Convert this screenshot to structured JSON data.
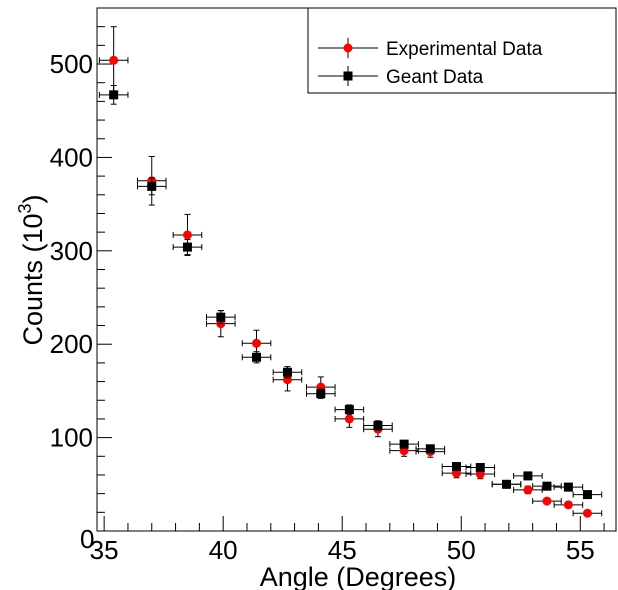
{
  "chart_data": {
    "type": "scatter",
    "xlabel": "Angle (Degrees)",
    "ylabel_main": "Counts (10",
    "ylabel_sup": "3",
    "ylabel_close": ")",
    "xlim": [
      34.7,
      56.5
    ],
    "ylim": [
      0,
      560
    ],
    "xticks": [
      35,
      40,
      45,
      50,
      55
    ],
    "yticks": [
      100,
      200,
      300,
      400,
      500
    ],
    "ytick_zero": "0",
    "legend_position": "top-right",
    "series": [
      {
        "name": "Experimental Data",
        "color": "#ff0000",
        "marker": "circle",
        "x": [
          35.4,
          37.0,
          38.5,
          39.9,
          41.4,
          42.7,
          44.1,
          45.3,
          46.5,
          47.6,
          48.7,
          49.8,
          50.8,
          51.9,
          52.8,
          53.6,
          54.5,
          55.3
        ],
        "y": [
          504,
          375,
          317,
          222,
          201,
          162,
          154,
          120,
          109,
          86,
          85,
          62,
          61,
          50,
          44,
          32,
          28,
          19
        ],
        "yerr": [
          36,
          26,
          22,
          14,
          14,
          12,
          11,
          9,
          8,
          6,
          6,
          5,
          5,
          4,
          4,
          3,
          3,
          2
        ]
      },
      {
        "name": "Geant Data",
        "color": "#000000",
        "marker": "square",
        "x": [
          35.4,
          37.0,
          38.5,
          39.9,
          41.4,
          42.7,
          44.1,
          45.3,
          46.5,
          47.6,
          48.7,
          49.8,
          50.8,
          51.9,
          52.8,
          53.6,
          54.5,
          55.3
        ],
        "y": [
          467,
          369,
          304,
          229,
          186,
          170,
          147,
          130,
          113,
          93,
          88,
          69,
          68,
          50,
          59,
          48,
          47,
          39
        ],
        "yerr": [
          10,
          9,
          8,
          7,
          6,
          6,
          5,
          5,
          5,
          4,
          4,
          4,
          4,
          3,
          3,
          3,
          3,
          3
        ]
      }
    ],
    "xerr": 0.6
  }
}
